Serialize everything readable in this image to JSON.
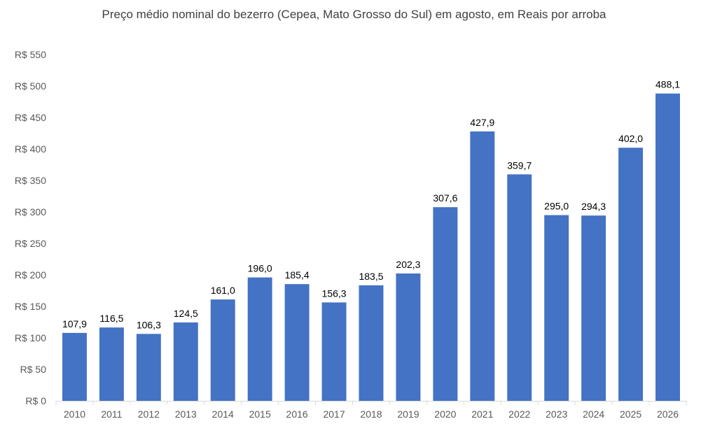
{
  "chart_data": {
    "type": "bar",
    "title": "Preço médio nominal do bezerro (Cepea, Mato Grosso do Sul) em agosto, em Reais por arroba",
    "xlabel": "",
    "ylabel": "",
    "categories": [
      "2010",
      "2011",
      "2012",
      "2013",
      "2014",
      "2015",
      "2016",
      "2017",
      "2018",
      "2019",
      "2020",
      "2021",
      "2022",
      "2023",
      "2024",
      "2025",
      "2026"
    ],
    "values": [
      107.9,
      116.5,
      106.3,
      124.5,
      161.0,
      196.0,
      185.4,
      156.3,
      183.5,
      202.3,
      307.6,
      427.9,
      359.7,
      295.0,
      294.3,
      402.0,
      488.1
    ],
    "data_labels": [
      "107,9",
      "116,5",
      "106,3",
      "124,5",
      "161,0",
      "196,0",
      "185,4",
      "156,3",
      "183,5",
      "202,3",
      "307,6",
      "427,9",
      "359,7",
      "295,0",
      "294,3",
      "402,0",
      "488,1"
    ],
    "ylim": [
      0,
      550
    ],
    "y_ticks": [
      "R$ 0",
      "R$ 50",
      "R$ 100",
      "R$ 150",
      "R$ 200",
      "R$ 250",
      "R$ 300",
      "R$ 350",
      "R$ 400",
      "R$ 450",
      "R$ 500",
      "R$ 550"
    ],
    "y_tick_values": [
      0,
      50,
      100,
      150,
      200,
      250,
      300,
      350,
      400,
      450,
      500,
      550
    ],
    "grid": false,
    "legend": "none",
    "bar_color": "#4472C4",
    "axis_color": "#D9D9D9"
  }
}
